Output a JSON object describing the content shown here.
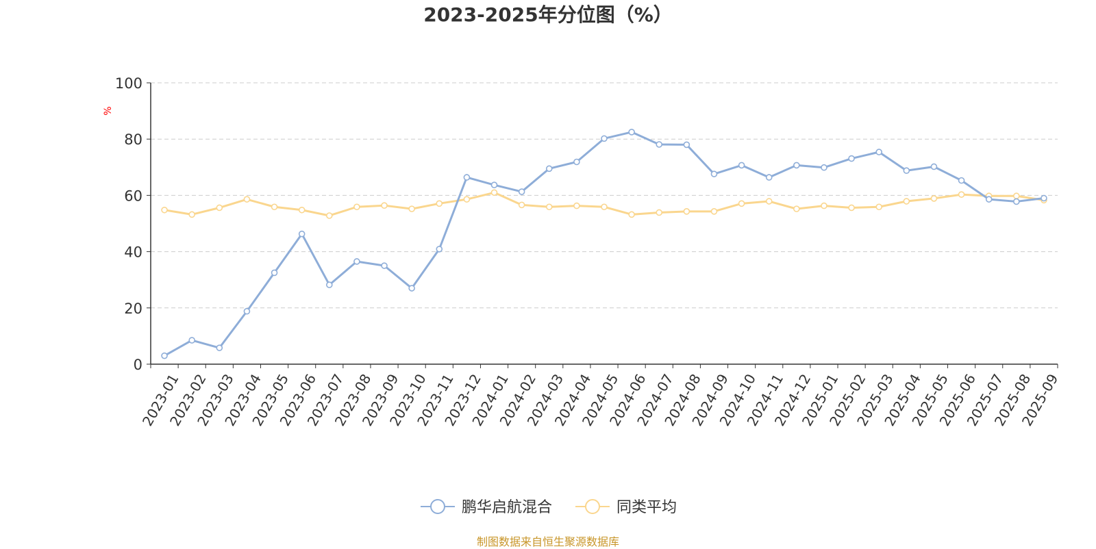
{
  "footer": {
    "source": "制图数据来自恒生聚源数据库"
  },
  "colors": {
    "series1": "#8eadd8",
    "series2": "#fad68e",
    "grid": "#cccccc",
    "axis": "#333333",
    "ylabel": "#ff0000"
  },
  "chart_data": {
    "type": "line",
    "title": "2023-2025年分位图（%）",
    "ylabel": "%",
    "xlabel": "",
    "ylim": [
      0,
      100
    ],
    "yticks": [
      "0",
      "20",
      "40",
      "60",
      "80",
      "100"
    ],
    "grid": true,
    "legend_position": "bottom-center",
    "categories": [
      "2023-01",
      "2023-02",
      "2023-03",
      "2023-04",
      "2023-05",
      "2023-06",
      "2023-07",
      "2023-08",
      "2023-09",
      "2023-10",
      "2023-11",
      "2023-12",
      "2024-01",
      "2024-02",
      "2024-03",
      "2024-04",
      "2024-05",
      "2024-06",
      "2024-07",
      "2024-08",
      "2024-09",
      "2024-10",
      "2024-11",
      "2024-12",
      "2025-01",
      "2025-02",
      "2025-03",
      "2025-04",
      "2025-05",
      "2025-06",
      "2025-07",
      "2025-08",
      "2025-09"
    ],
    "series": [
      {
        "name": "鹏华启航混合",
        "values": [
          3,
          8.5,
          5.8,
          18.8,
          32.5,
          46.3,
          28.2,
          36.5,
          35,
          27,
          40.9,
          66.4,
          63.7,
          61.3,
          69.5,
          71.9,
          80.2,
          82.5,
          78.1,
          78,
          67.6,
          70.7,
          66.4,
          70.7,
          69.9,
          73.1,
          75.4,
          68.8,
          70.2,
          65.3,
          58.6,
          57.8,
          59
        ]
      },
      {
        "name": "同类平均",
        "values": [
          54.8,
          53.2,
          55.6,
          58.6,
          55.9,
          54.8,
          52.8,
          55.9,
          56.4,
          55.2,
          57.1,
          58.6,
          61,
          56.6,
          55.9,
          56.3,
          55.9,
          53.2,
          53.9,
          54.3,
          54.3,
          57.1,
          57.9,
          55.2,
          56.3,
          55.6,
          55.9,
          57.9,
          58.9,
          60.3,
          59.8,
          59.8,
          58.3
        ]
      }
    ]
  }
}
